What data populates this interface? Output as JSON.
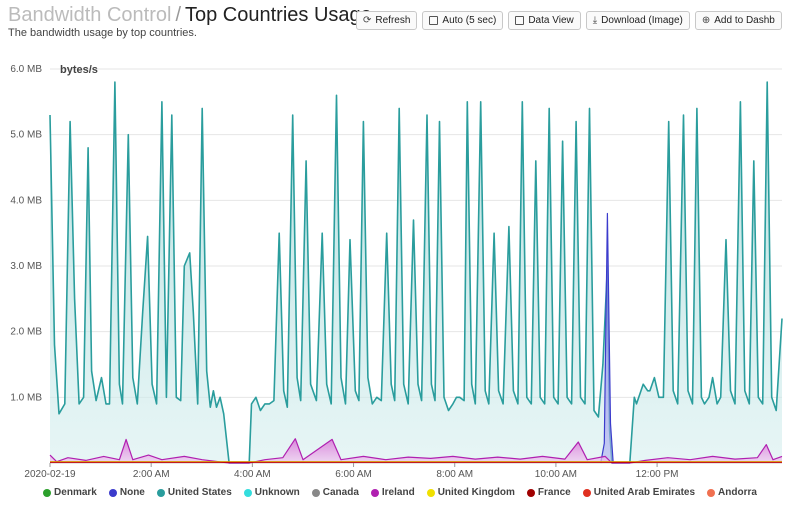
{
  "header": {
    "crumb": "Bandwidth Control",
    "separator": "/",
    "title": "Top Countries Usage",
    "subtitle": "The bandwidth usage by top countries."
  },
  "toolbar": {
    "refresh": "Refresh",
    "auto": "Auto (5 sec)",
    "data_view": "Data View",
    "download": "Download (Image)",
    "add": "Add to Dashb"
  },
  "chart_data": {
    "type": "area",
    "ylabel": "bytes/s",
    "y_ticks": [
      "6.0 MB",
      "5.0 MB",
      "4.0 MB",
      "3.0 MB",
      "2.0 MB",
      "1.0 MB"
    ],
    "ylim": [
      0,
      6.0
    ],
    "x_ticks": [
      "2020-02-19",
      "2:00 AM",
      "4:00 AM",
      "6:00 AM",
      "8:00 AM",
      "10:00 AM",
      "12:00 PM"
    ],
    "xlim_hours": [
      0,
      13
    ],
    "grid": true,
    "legend_position": "bottom",
    "series": [
      {
        "name": "United States",
        "color": "#2a9d9d",
        "points": [
          [
            0.0,
            5.3
          ],
          [
            0.1,
            1.8
          ],
          [
            0.2,
            0.75
          ],
          [
            0.33,
            0.9
          ],
          [
            0.45,
            5.2
          ],
          [
            0.55,
            2.5
          ],
          [
            0.65,
            0.9
          ],
          [
            0.75,
            1.0
          ],
          [
            0.85,
            4.8
          ],
          [
            0.93,
            1.4
          ],
          [
            1.03,
            0.95
          ],
          [
            1.15,
            1.3
          ],
          [
            1.25,
            0.9
          ],
          [
            1.33,
            0.9
          ],
          [
            1.45,
            5.8
          ],
          [
            1.55,
            1.2
          ],
          [
            1.62,
            0.9
          ],
          [
            1.75,
            5.0
          ],
          [
            1.85,
            1.3
          ],
          [
            1.95,
            0.9
          ],
          [
            2.07,
            2.3
          ],
          [
            2.18,
            3.45
          ],
          [
            2.28,
            1.2
          ],
          [
            2.38,
            0.9
          ],
          [
            2.5,
            5.5
          ],
          [
            2.6,
            1.0
          ],
          [
            2.72,
            5.3
          ],
          [
            2.82,
            1.0
          ],
          [
            2.92,
            0.95
          ],
          [
            3.0,
            3.0
          ],
          [
            3.12,
            3.2
          ],
          [
            3.2,
            2.3
          ],
          [
            3.3,
            0.9
          ],
          [
            3.4,
            5.4
          ],
          [
            3.5,
            1.4
          ],
          [
            3.58,
            0.85
          ],
          [
            3.65,
            1.1
          ],
          [
            3.72,
            0.85
          ],
          [
            3.8,
            1.0
          ],
          [
            3.88,
            0.75
          ],
          [
            4.0,
            0.0
          ],
          [
            4.45,
            0.0
          ],
          [
            4.5,
            0.9
          ],
          [
            4.6,
            1.0
          ],
          [
            4.7,
            0.8
          ],
          [
            4.8,
            0.9
          ],
          [
            4.9,
            0.9
          ],
          [
            5.0,
            0.95
          ],
          [
            5.12,
            3.5
          ],
          [
            5.22,
            1.1
          ],
          [
            5.3,
            0.85
          ],
          [
            5.42,
            5.3
          ],
          [
            5.52,
            1.3
          ],
          [
            5.6,
            0.95
          ],
          [
            5.72,
            4.6
          ],
          [
            5.82,
            1.2
          ],
          [
            5.95,
            0.95
          ],
          [
            6.08,
            3.5
          ],
          [
            6.18,
            1.2
          ],
          [
            6.28,
            0.9
          ],
          [
            6.4,
            5.6
          ],
          [
            6.5,
            1.3
          ],
          [
            6.6,
            0.9
          ],
          [
            6.7,
            3.4
          ],
          [
            6.82,
            1.1
          ],
          [
            6.9,
            0.95
          ],
          [
            7.0,
            5.2
          ],
          [
            7.1,
            1.3
          ],
          [
            7.2,
            0.9
          ],
          [
            7.3,
            1.0
          ],
          [
            7.4,
            0.95
          ],
          [
            7.52,
            3.5
          ],
          [
            7.62,
            1.2
          ],
          [
            7.7,
            0.95
          ],
          [
            7.8,
            5.4
          ],
          [
            7.9,
            1.2
          ],
          [
            8.0,
            0.9
          ],
          [
            8.12,
            3.7
          ],
          [
            8.22,
            1.2
          ],
          [
            8.3,
            0.95
          ],
          [
            8.42,
            5.3
          ],
          [
            8.52,
            1.2
          ],
          [
            8.6,
            0.95
          ],
          [
            8.7,
            5.2
          ],
          [
            8.8,
            1.0
          ],
          [
            8.9,
            0.8
          ],
          [
            9.0,
            0.9
          ],
          [
            9.08,
            1.0
          ],
          [
            9.15,
            1.0
          ],
          [
            9.25,
            0.95
          ],
          [
            9.32,
            5.5
          ],
          [
            9.42,
            1.2
          ],
          [
            9.5,
            0.9
          ],
          [
            9.62,
            5.5
          ],
          [
            9.72,
            1.1
          ],
          [
            9.8,
            0.9
          ],
          [
            9.92,
            3.5
          ],
          [
            10.02,
            1.1
          ],
          [
            10.12,
            0.9
          ],
          [
            10.25,
            3.6
          ],
          [
            10.35,
            1.1
          ],
          [
            10.45,
            0.9
          ],
          [
            10.55,
            5.5
          ],
          [
            10.65,
            1.0
          ],
          [
            10.75,
            0.9
          ],
          [
            10.85,
            4.6
          ],
          [
            10.95,
            1.0
          ],
          [
            11.05,
            0.9
          ],
          [
            11.15,
            5.4
          ],
          [
            11.25,
            1.0
          ],
          [
            11.35,
            0.9
          ],
          [
            11.45,
            4.9
          ],
          [
            11.55,
            1.0
          ],
          [
            11.65,
            0.9
          ],
          [
            11.75,
            5.2
          ],
          [
            11.85,
            1.0
          ],
          [
            11.95,
            0.9
          ],
          [
            12.05,
            5.4
          ],
          [
            12.15,
            0.8
          ],
          [
            12.25,
            0.7
          ],
          [
            12.35,
            1.5
          ],
          [
            12.45,
            3.0
          ],
          [
            12.5,
            0.5
          ],
          [
            12.55,
            0.0
          ],
          [
            12.95,
            0.0
          ],
          [
            13.05,
            1.0
          ],
          [
            13.1,
            0.9
          ],
          [
            13.25,
            1.2
          ],
          [
            13.35,
            1.1
          ],
          [
            13.4,
            1.1
          ],
          [
            13.5,
            1.3
          ],
          [
            13.6,
            1.0
          ],
          [
            13.7,
            1.0
          ],
          [
            13.82,
            5.2
          ],
          [
            13.92,
            1.1
          ],
          [
            14.02,
            0.9
          ],
          [
            14.15,
            5.3
          ],
          [
            14.25,
            1.1
          ],
          [
            14.35,
            0.9
          ],
          [
            14.45,
            5.4
          ],
          [
            14.55,
            1.0
          ],
          [
            14.62,
            0.9
          ],
          [
            14.72,
            1.0
          ],
          [
            14.8,
            1.3
          ],
          [
            14.9,
            0.9
          ],
          [
            14.98,
            1.0
          ],
          [
            15.1,
            3.4
          ],
          [
            15.2,
            1.1
          ],
          [
            15.3,
            0.9
          ],
          [
            15.42,
            5.5
          ],
          [
            15.52,
            1.1
          ],
          [
            15.62,
            0.9
          ],
          [
            15.72,
            4.6
          ],
          [
            15.82,
            1.0
          ],
          [
            15.92,
            0.9
          ],
          [
            16.02,
            5.8
          ],
          [
            16.12,
            1.0
          ],
          [
            16.22,
            0.8
          ],
          [
            16.35,
            2.2
          ]
        ]
      },
      {
        "name": "None",
        "color": "#3b3bcc",
        "points": [
          [
            12.3,
            0.0
          ],
          [
            12.38,
            0.3
          ],
          [
            12.45,
            3.8
          ],
          [
            12.52,
            0.6
          ],
          [
            12.58,
            0.0
          ]
        ]
      },
      {
        "name": "Ireland",
        "color": "#b020b0",
        "points": [
          [
            0.0,
            0.12
          ],
          [
            0.15,
            0.02
          ],
          [
            0.4,
            0.08
          ],
          [
            0.8,
            0.04
          ],
          [
            1.2,
            0.1
          ],
          [
            1.55,
            0.05
          ],
          [
            1.7,
            0.36
          ],
          [
            1.85,
            0.05
          ],
          [
            2.2,
            0.12
          ],
          [
            2.5,
            0.05
          ],
          [
            3.0,
            0.1
          ],
          [
            3.4,
            0.05
          ],
          [
            4.0,
            0.0
          ],
          [
            4.45,
            0.0
          ],
          [
            4.8,
            0.05
          ],
          [
            5.2,
            0.08
          ],
          [
            5.48,
            0.37
          ],
          [
            5.65,
            0.05
          ],
          [
            6.3,
            0.36
          ],
          [
            6.5,
            0.05
          ],
          [
            7.0,
            0.1
          ],
          [
            7.5,
            0.05
          ],
          [
            8.0,
            0.09
          ],
          [
            8.5,
            0.07
          ],
          [
            9.0,
            0.1
          ],
          [
            9.5,
            0.06
          ],
          [
            10.0,
            0.09
          ],
          [
            10.5,
            0.06
          ],
          [
            11.0,
            0.1
          ],
          [
            11.5,
            0.06
          ],
          [
            11.8,
            0.32
          ],
          [
            12.0,
            0.05
          ],
          [
            12.4,
            0.1
          ],
          [
            12.55,
            0.0
          ],
          [
            12.95,
            0.0
          ],
          [
            13.3,
            0.04
          ],
          [
            13.8,
            0.08
          ],
          [
            14.3,
            0.05
          ],
          [
            14.8,
            0.1
          ],
          [
            15.3,
            0.06
          ],
          [
            15.8,
            0.08
          ],
          [
            16.0,
            0.28
          ],
          [
            16.15,
            0.05
          ],
          [
            16.35,
            0.1
          ]
        ]
      },
      {
        "name": "United Kingdom",
        "color": "#e0d000",
        "points": [
          [
            0.0,
            0.02
          ],
          [
            16.35,
            0.02
          ]
        ]
      },
      {
        "name": "France",
        "color": "#c00000",
        "points": [
          [
            0.0,
            0.01
          ],
          [
            16.35,
            0.01
          ]
        ]
      }
    ]
  },
  "legend": [
    {
      "label": "Denmark",
      "color": "#2ca02c"
    },
    {
      "label": "None",
      "color": "#3b3bcc"
    },
    {
      "label": "United States",
      "color": "#2a9d9d"
    },
    {
      "label": "Unknown",
      "color": "#33dddd"
    },
    {
      "label": "Canada",
      "color": "#888888"
    },
    {
      "label": "Ireland",
      "color": "#b020b0"
    },
    {
      "label": "United Kingdom",
      "color": "#f0e000"
    },
    {
      "label": "France",
      "color": "#a00000"
    },
    {
      "label": "United Arab Emirates",
      "color": "#e03020"
    },
    {
      "label": "Andorra",
      "color": "#f07050"
    }
  ]
}
